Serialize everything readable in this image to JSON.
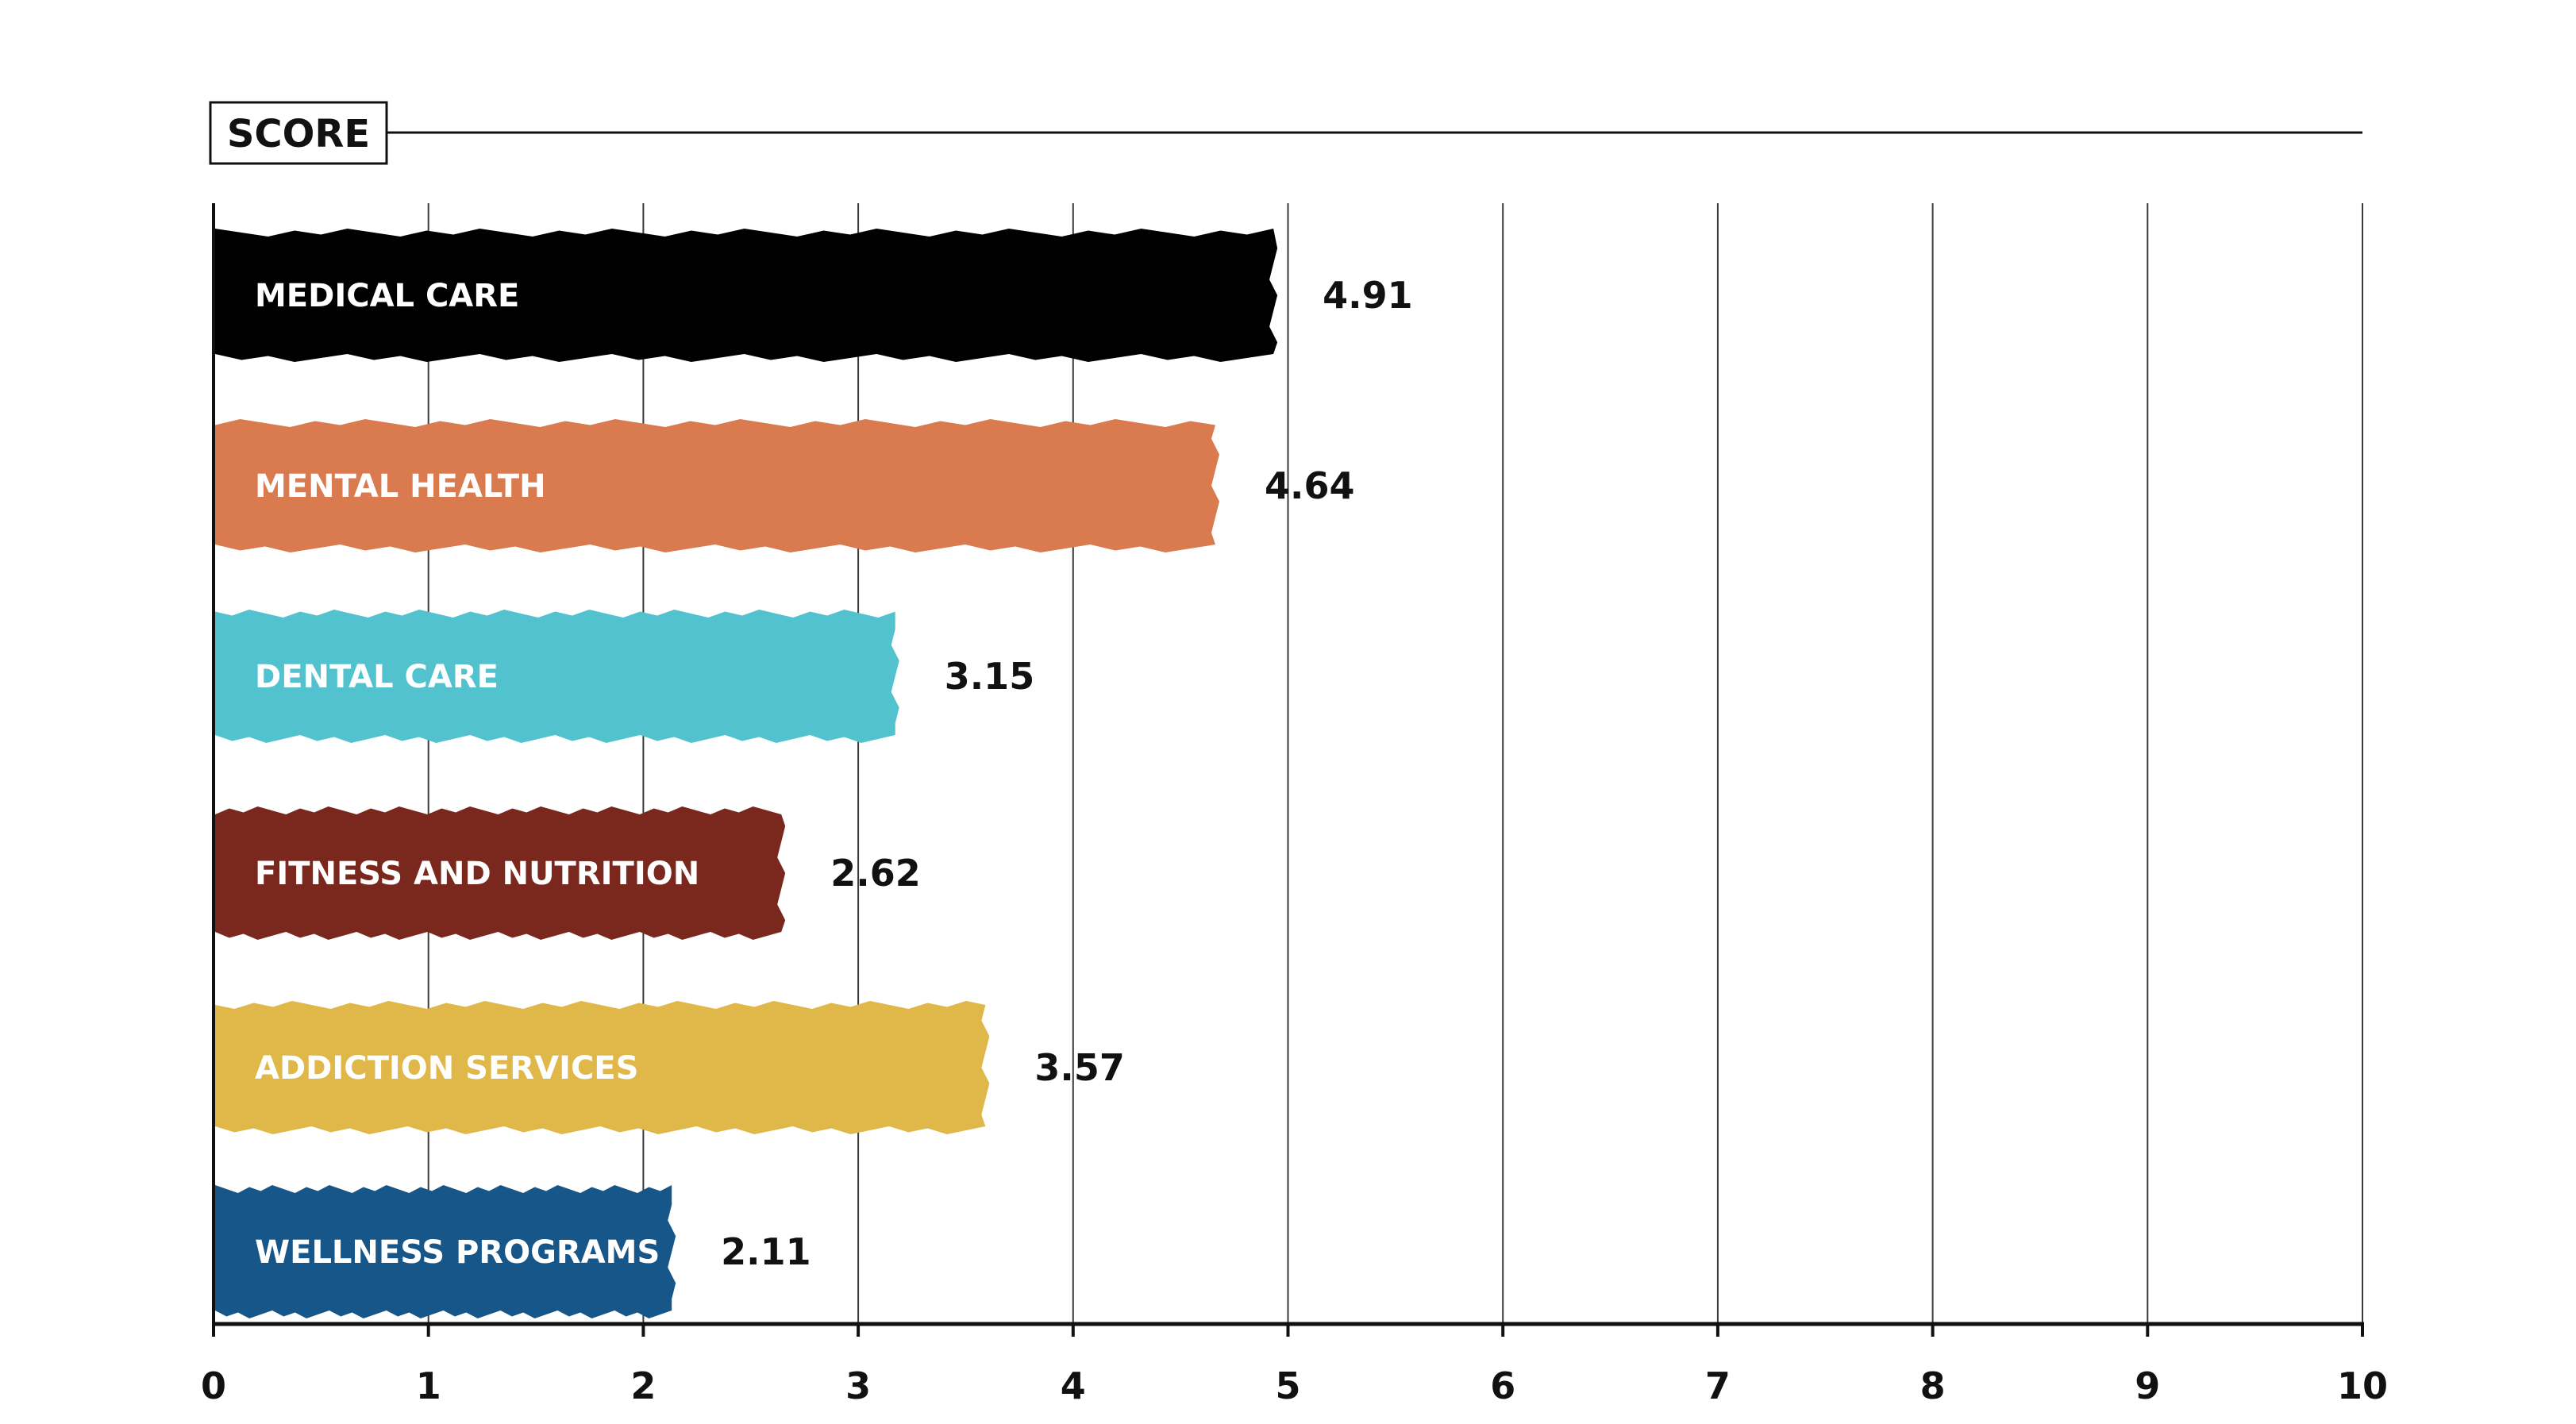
{
  "chart_data": {
    "type": "bar",
    "orientation": "horizontal",
    "title": "SCORE",
    "categories": [
      "MEDICAL CARE",
      "MENTAL HEALTH",
      "DENTAL CARE",
      "FITNESS AND NUTRITION",
      "ADDICTION SERVICES",
      "WELLNESS PROGRAMS"
    ],
    "values": [
      4.91,
      4.64,
      3.15,
      2.62,
      3.57,
      2.11
    ],
    "value_labels": [
      "4.91",
      "4.64",
      "3.15",
      "2.62",
      "3.57",
      "2.11"
    ],
    "colors": [
      "#000000",
      "#d97b4e",
      "#52c3ce",
      "#7a271e",
      "#e0b84a",
      "#175689"
    ],
    "xlim": [
      0,
      10
    ],
    "xticks": [
      "0",
      "1",
      "2",
      "3",
      "4",
      "5",
      "6",
      "7",
      "8",
      "9",
      "10"
    ],
    "xlabel": "",
    "ylabel": "",
    "grid": true,
    "legend": "none"
  }
}
